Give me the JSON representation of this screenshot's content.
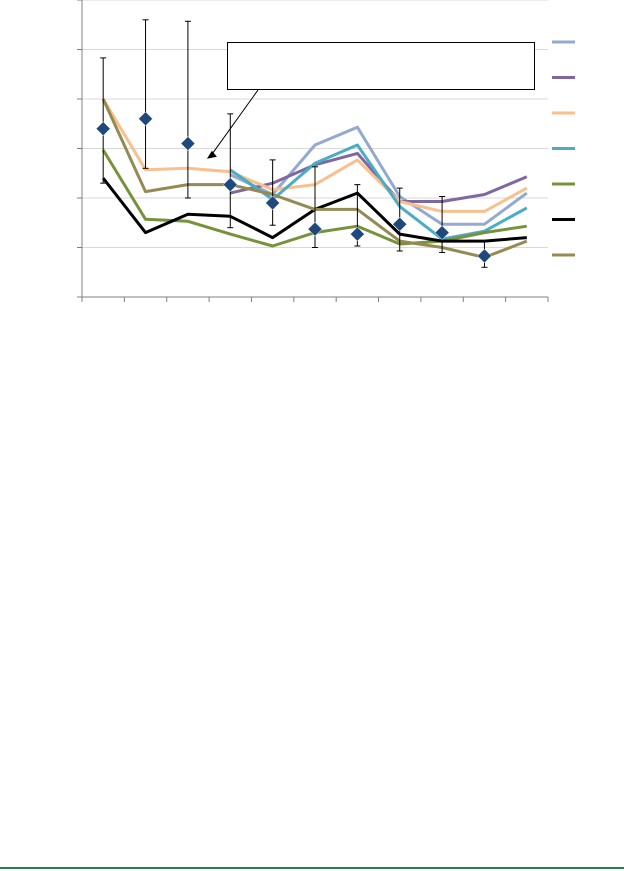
{
  "chart_data": {
    "type": "line",
    "x": [
      1,
      2,
      3,
      4,
      5,
      6,
      7,
      8,
      9,
      10,
      11
    ],
    "ylim": [
      0,
      6
    ],
    "grid": true,
    "legend_placement": "right",
    "series": [
      {
        "color": "#93a9cf",
        "values": [
          null,
          null,
          null,
          2.47,
          2.07,
          3.07,
          3.43,
          2.03,
          1.47,
          1.47,
          2.1
        ]
      },
      {
        "color": "#7f67a2",
        "values": [
          null,
          null,
          null,
          2.1,
          2.3,
          2.67,
          2.9,
          1.93,
          1.93,
          2.07,
          2.43
        ]
      },
      {
        "color": "#f9c08e",
        "values": [
          4.0,
          2.57,
          2.6,
          2.53,
          2.17,
          2.27,
          2.77,
          1.93,
          1.73,
          1.73,
          2.2
        ]
      },
      {
        "color": "#4aacc5",
        "values": [
          null,
          null,
          null,
          2.57,
          1.97,
          2.7,
          3.07,
          1.83,
          1.17,
          1.33,
          1.8
        ]
      },
      {
        "color": "#76933c",
        "values": [
          2.97,
          1.57,
          1.53,
          1.27,
          1.03,
          1.3,
          1.43,
          1.07,
          1.13,
          1.3,
          1.43
        ]
      },
      {
        "color": "#000000",
        "values": [
          2.4,
          1.3,
          1.67,
          1.63,
          1.2,
          1.77,
          2.1,
          1.27,
          1.13,
          1.13,
          1.2
        ]
      },
      {
        "color": "#948a54",
        "values": [
          4.0,
          2.13,
          2.27,
          2.27,
          2.07,
          1.77,
          1.77,
          1.13,
          1.0,
          0.8,
          1.13
        ]
      }
    ],
    "markers": {
      "color": "#1f497d",
      "values": [
        3.4,
        3.6,
        3.1,
        2.27,
        1.9,
        1.37,
        1.27,
        1.47,
        1.3,
        0.83
      ],
      "err_low": [
        2.3,
        2.6,
        2.0,
        1.4,
        1.45,
        1.0,
        1.03,
        0.93,
        0.9,
        0.6
      ],
      "err_high": [
        4.83,
        5.6,
        5.57,
        3.7,
        2.77,
        2.63,
        2.27,
        2.2,
        2.03,
        1.13
      ]
    },
    "annotation": {
      "text": "",
      "points_to_x": 3
    },
    "colors": {
      "grid": "#d9d9d9",
      "axis": "#808080",
      "bottom_rule": "#2e7d4f"
    }
  }
}
